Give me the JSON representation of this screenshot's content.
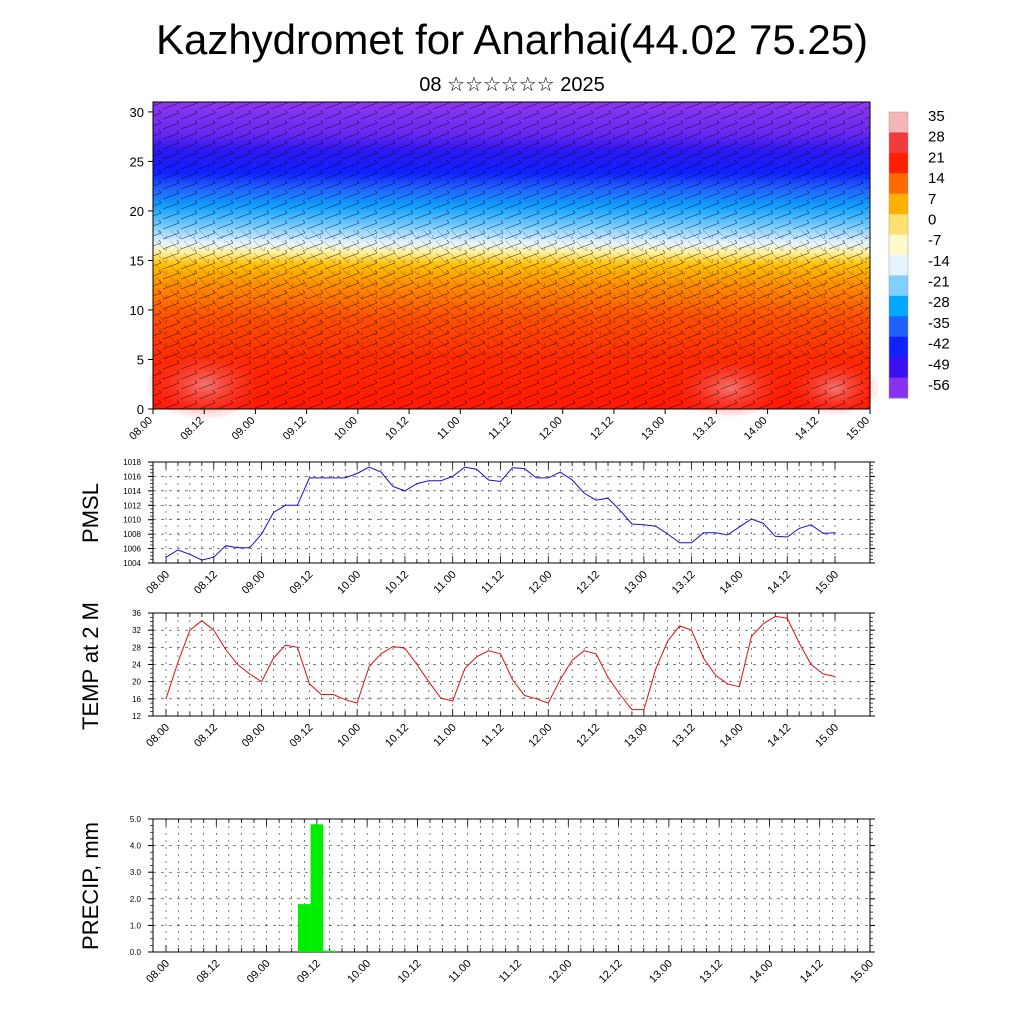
{
  "title": "Kazhydromet for Anarhai(44.02 75.25)",
  "subtitle": "08 ☆☆☆☆☆☆ 2025",
  "colors": {
    "pmsl_line": "#1010d0",
    "temp_line": "#e01010",
    "precip_bar": "#00ee00"
  },
  "chart_data": [
    {
      "type": "heatmap",
      "name": "temperature-cross-section",
      "x_tick_labels": [
        "08.00",
        "08.12",
        "09.00",
        "09.12",
        "10.00",
        "10.12",
        "11.00",
        "11.12",
        "12.00",
        "12.12",
        "13.00",
        "13.12",
        "14.00",
        "14.12",
        "15.00"
      ],
      "y_tick_labels": [
        "0",
        "5",
        "10",
        "15",
        "20",
        "25",
        "30"
      ],
      "ylim": [
        0,
        31
      ],
      "colorbar_labels": [
        "35",
        "28",
        "21",
        "14",
        "7",
        "0",
        "-7",
        "-14",
        "-21",
        "-28",
        "-35",
        "-42",
        "-49",
        "-56"
      ],
      "colorbar_colors": [
        "#f4b6b6",
        "#f03c3c",
        "#ff2000",
        "#ff6a00",
        "#ffb000",
        "#ffe070",
        "#fff8c8",
        "#e6f4ff",
        "#80d0ff",
        "#00a8ff",
        "#2060ff",
        "#1020ff",
        "#3a10f0",
        "#8a30f0"
      ],
      "wind_barbs": true
    },
    {
      "type": "line",
      "name": "PMSL",
      "ylabel": "PMSL",
      "ylim": [
        1004,
        1018
      ],
      "y_tick_labels": [
        "1018",
        "1016",
        "1014",
        "1012",
        "1010",
        "1008",
        "1006",
        "1004"
      ],
      "x_tick_labels": [
        "08.00",
        "08.12",
        "09.00",
        "09.12",
        "10.00",
        "10.12",
        "11.00",
        "11.12",
        "12.00",
        "12.12",
        "13.00",
        "13.12",
        "14.00",
        "14.12",
        "15.00"
      ],
      "values": [
        1004.8,
        1005.8,
        1005.2,
        1004.4,
        1004.8,
        1006.4,
        1006.1,
        1006.1,
        1008.0,
        1011.0,
        1012.0,
        1012.0,
        1015.8,
        1015.8,
        1015.8,
        1015.8,
        1016.4,
        1017.3,
        1016.6,
        1014.6,
        1014.0,
        1015.0,
        1015.4,
        1015.4,
        1016.0,
        1017.3,
        1017.0,
        1015.5,
        1015.3,
        1017.2,
        1017.1,
        1015.8,
        1015.8,
        1016.6,
        1015.5,
        1013.7,
        1012.7,
        1013.0,
        1011.3,
        1009.4,
        1009.3,
        1009.1,
        1008.0,
        1006.8,
        1006.8,
        1008.2,
        1008.2,
        1007.9,
        1009.0,
        1010.1,
        1009.5,
        1007.7,
        1007.6,
        1008.8,
        1009.3,
        1008.1,
        1008.2
      ],
      "grid": true
    },
    {
      "type": "line",
      "name": "TEMP at 2 M",
      "ylabel": "TEMP at 2 M",
      "ylim": [
        12,
        36
      ],
      "y_tick_labels": [
        "36",
        "32",
        "28",
        "24",
        "20",
        "16",
        "12"
      ],
      "x_tick_labels": [
        "08.00",
        "08.12",
        "09.00",
        "09.12",
        "10.00",
        "10.12",
        "11.00",
        "11.12",
        "12.00",
        "12.12",
        "13.00",
        "13.12",
        "14.00",
        "14.12",
        "15.00"
      ],
      "values": [
        16.0,
        24.5,
        32.0,
        34.2,
        32.0,
        27.5,
        24.0,
        21.8,
        20.0,
        25.5,
        28.5,
        28.0,
        19.5,
        17.0,
        17.0,
        15.8,
        15.0,
        23.5,
        26.5,
        28.2,
        27.8,
        24.0,
        20.0,
        16.2,
        15.5,
        23.0,
        25.8,
        27.2,
        26.5,
        20.5,
        16.8,
        16.0,
        15.0,
        20.5,
        25.0,
        27.2,
        26.5,
        21.0,
        17.0,
        13.5,
        13.5,
        23.0,
        29.5,
        33.0,
        32.0,
        25.5,
        21.5,
        19.5,
        18.8,
        30.5,
        33.5,
        35.2,
        34.8,
        29.0,
        24.0,
        21.8,
        21.2
      ],
      "grid": true
    },
    {
      "type": "bar",
      "name": "PRECIP, mm",
      "ylabel": "PRECIP, mm",
      "ylim": [
        0,
        5
      ],
      "y_tick_labels": [
        "5.0",
        "4.0",
        "3.0",
        "2.0",
        "1.0",
        "0.0"
      ],
      "x_tick_labels": [
        "08.00",
        "08.12",
        "09.00",
        "09.12",
        "10.00",
        "10.12",
        "11.00",
        "11.12",
        "12.00",
        "12.12",
        "13.00",
        "13.12",
        "14.00",
        "14.12",
        "15.00"
      ],
      "bars": [
        {
          "time": "09.09",
          "value": 1.8
        },
        {
          "time": "09.12",
          "value": 4.8
        },
        {
          "time": "09.15",
          "value": 0.05
        }
      ],
      "grid": true
    }
  ]
}
